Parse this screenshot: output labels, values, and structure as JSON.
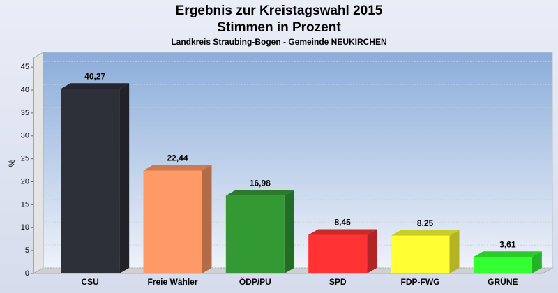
{
  "chart_data": {
    "type": "bar",
    "title": [
      "Ergebnis zur Kreistagswahl 2015",
      "Stimmen in Prozent"
    ],
    "subtitle": "Landkreis Straubing-Bogen - Gemeinde NEUKIRCHEN",
    "y_label": "%",
    "categories": [
      "CSU",
      "Freie Wähler",
      "ÖDP/PU",
      "SPD",
      "FDP-FWG",
      "GRÜNE"
    ],
    "values": [
      40.27,
      22.44,
      16.98,
      8.45,
      8.25,
      3.61
    ],
    "value_labels": [
      "40,27",
      "22,44",
      "16,98",
      "8,45",
      "8,25",
      "3,61"
    ],
    "colors": [
      "#2e3039",
      "#ff9966",
      "#339933",
      "#ff3333",
      "#ffff33",
      "#33ff33"
    ],
    "ylim": [
      0,
      47
    ],
    "yticks": [
      0,
      5,
      10,
      15,
      20,
      25,
      30,
      35,
      40,
      45
    ],
    "grid": true
  }
}
